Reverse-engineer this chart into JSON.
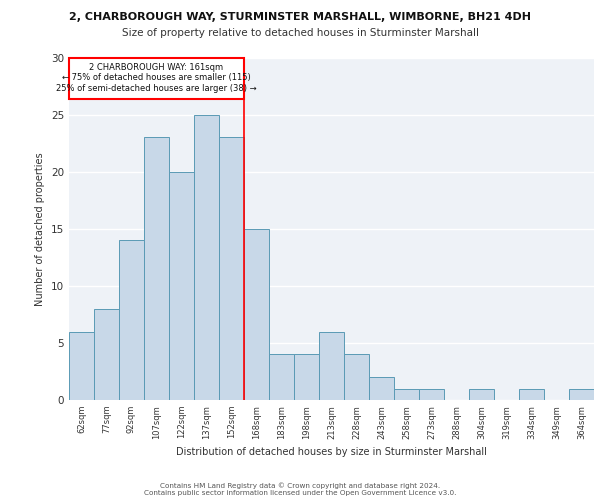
{
  "title1": "2, CHARBOROUGH WAY, STURMINSTER MARSHALL, WIMBORNE, BH21 4DH",
  "title2": "Size of property relative to detached houses in Sturminster Marshall",
  "xlabel": "Distribution of detached houses by size in Sturminster Marshall",
  "ylabel": "Number of detached properties",
  "categories": [
    "62sqm",
    "77sqm",
    "92sqm",
    "107sqm",
    "122sqm",
    "137sqm",
    "152sqm",
    "168sqm",
    "183sqm",
    "198sqm",
    "213sqm",
    "228sqm",
    "243sqm",
    "258sqm",
    "273sqm",
    "288sqm",
    "304sqm",
    "319sqm",
    "334sqm",
    "349sqm",
    "364sqm"
  ],
  "values": [
    6,
    8,
    14,
    23,
    20,
    25,
    23,
    15,
    4,
    4,
    6,
    4,
    2,
    1,
    1,
    0,
    1,
    0,
    1,
    0,
    1
  ],
  "bar_color": "#c8d8e8",
  "bar_edge_color": "#5a9ab5",
  "annotation_line1": "2 CHARBOROUGH WAY: 161sqm",
  "annotation_line2": "← 75% of detached houses are smaller (115)",
  "annotation_line3": "25% of semi-detached houses are larger (38) →",
  "ylim": [
    0,
    30
  ],
  "yticks": [
    0,
    5,
    10,
    15,
    20,
    25,
    30
  ],
  "bg_color": "#eef2f7",
  "grid_color": "#ffffff",
  "footer1": "Contains HM Land Registry data © Crown copyright and database right 2024.",
  "footer2": "Contains public sector information licensed under the Open Government Licence v3.0."
}
